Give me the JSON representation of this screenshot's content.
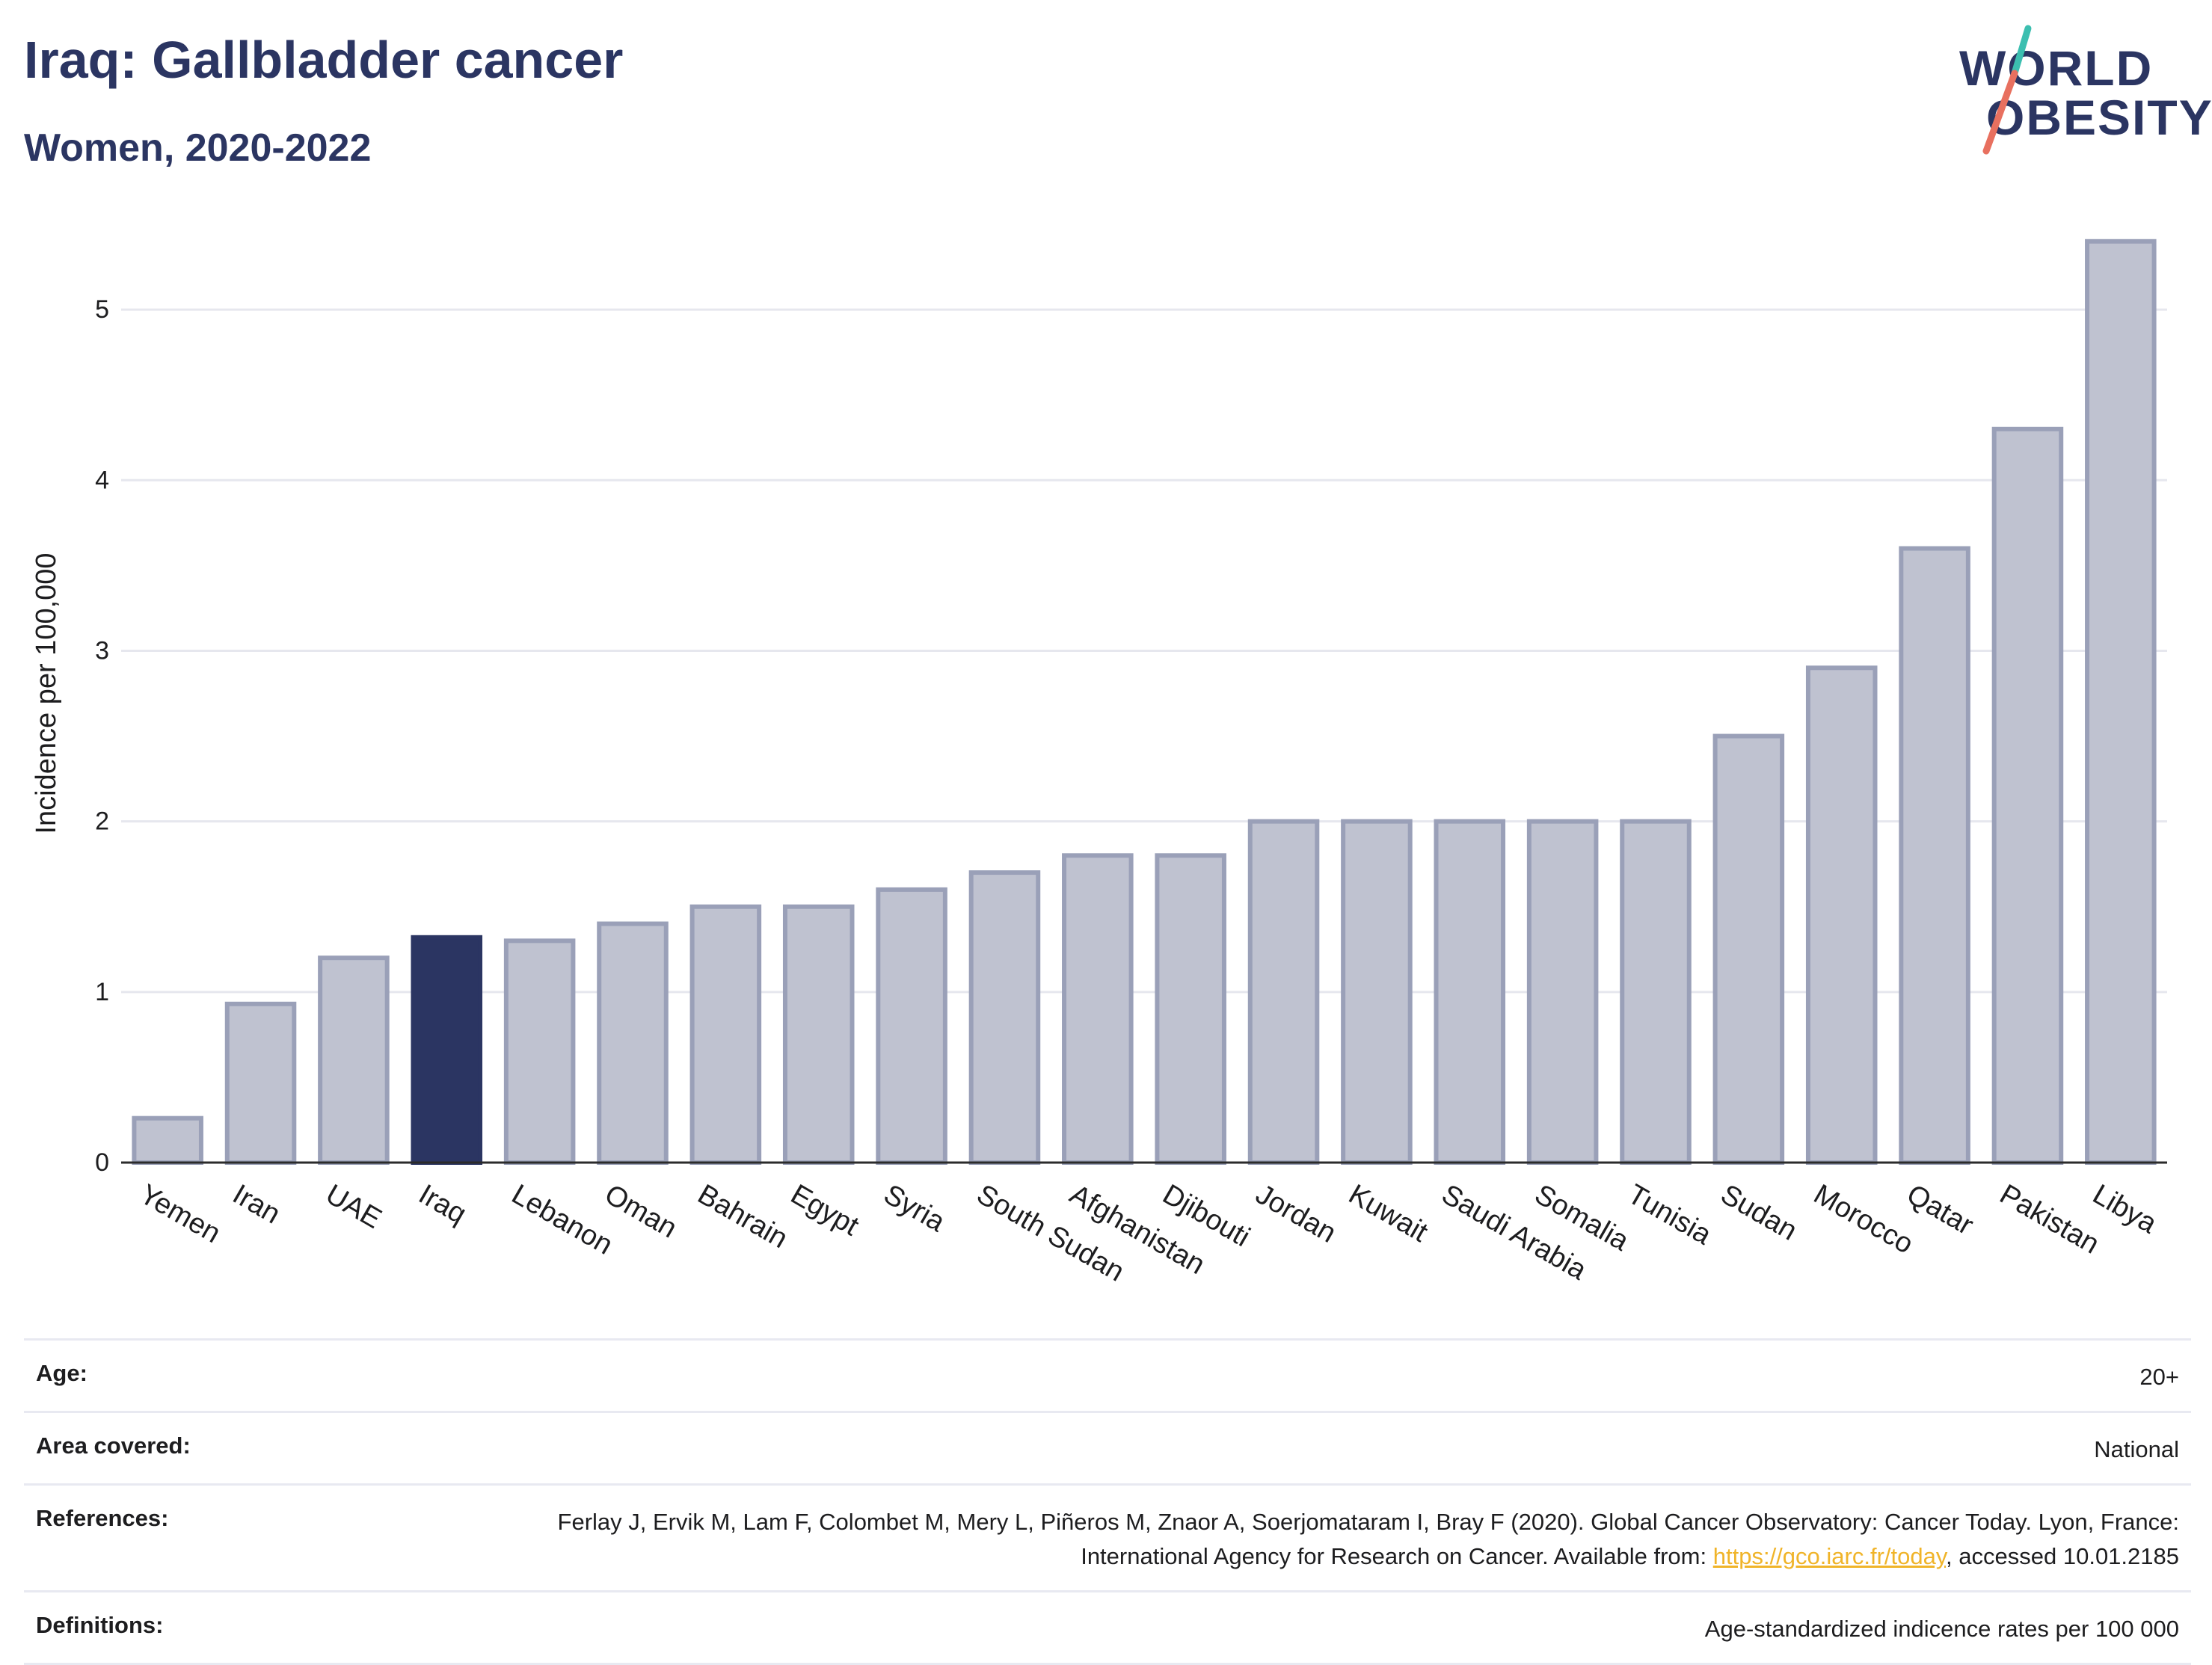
{
  "header": {
    "title": "Iraq: Gallbladder cancer",
    "subtitle": "Women, 2020-2022"
  },
  "logo": {
    "line1": "WORLD",
    "line2": "OBESITY"
  },
  "colors": {
    "highlight": "#2b3562",
    "bar_fill": "#bfc2d0",
    "bar_stroke": "#9aa0b8",
    "logo_teal": "#3cbfb0",
    "logo_coral": "#e8705f",
    "link": "#f0b429"
  },
  "chart_data": {
    "type": "bar",
    "title": "Iraq: Gallbladder cancer",
    "subtitle": "Women, 2020-2022",
    "xlabel": "",
    "ylabel": "Incidence per 100,000",
    "ylim": [
      0,
      5.5
    ],
    "yticks": [
      0,
      1,
      2,
      3,
      4,
      5
    ],
    "grid": true,
    "highlight_category": "Iraq",
    "categories": [
      "Yemen",
      "Iran",
      "UAE",
      "Iraq",
      "Lebanon",
      "Oman",
      "Bahrain",
      "Egypt",
      "Syria",
      "South Sudan",
      "Afghanistan",
      "Djibouti",
      "Jordan",
      "Kuwait",
      "Saudi Arabia",
      "Somalia",
      "Tunisia",
      "Sudan",
      "Morocco",
      "Qatar",
      "Pakistan",
      "Libya"
    ],
    "values": [
      0.26,
      0.93,
      1.2,
      1.32,
      1.3,
      1.4,
      1.5,
      1.5,
      1.6,
      1.7,
      1.8,
      1.8,
      2.0,
      2.0,
      2.0,
      2.0,
      2.0,
      2.5,
      2.9,
      3.6,
      4.3,
      5.4
    ]
  },
  "meta": {
    "age_label": "Age:",
    "age_value": "20+",
    "area_label": "Area covered:",
    "area_value": "National",
    "references_label": "References:",
    "references_text": "Ferlay J, Ervik M, Lam F, Colombet M, Mery L, Piñeros M, Znaor A, Soerjomataram I, Bray F (2020). Global Cancer Observatory: Cancer Today. Lyon, France: International Agency for Research on Cancer. Available from:",
    "references_link": "https://gco.iarc.fr/today",
    "references_suffix": ", accessed 10.01.2185",
    "definitions_label": "Definitions:",
    "definitions_value": "Age-standardized indicence rates per 100 000"
  }
}
